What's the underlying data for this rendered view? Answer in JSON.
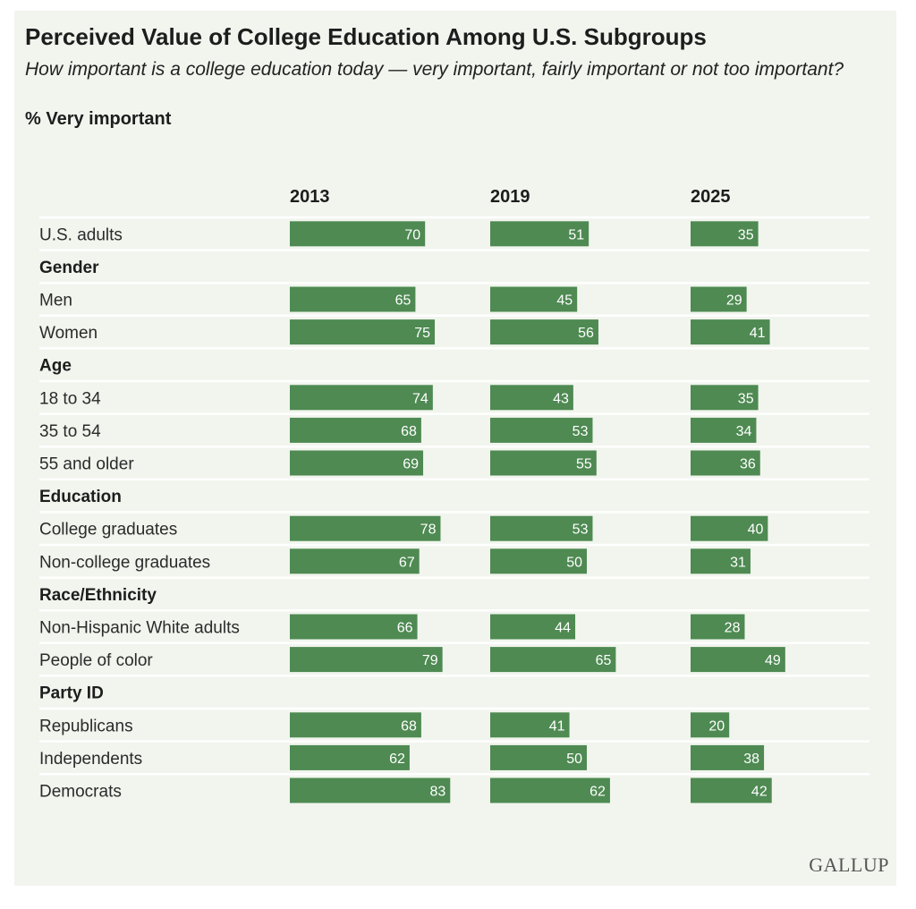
{
  "header": {
    "title": "Perceived Value of College Education Among U.S. Subgroups",
    "subtitle": "How important is a college education today — very important, fairly important or not too important?",
    "measure": "% Very important"
  },
  "source": {
    "logo_text": "GALLUP"
  },
  "colors": {
    "bar": "#4e8a52",
    "bar_text": "#ffffff",
    "divider": "#ffffff",
    "background": "#f1f5ee",
    "text": "#222222"
  },
  "chart_data": {
    "type": "bar",
    "orientation": "horizontal",
    "title": "Perceived Value of College Education Among U.S. Subgroups",
    "ylabel": "% Very important",
    "xlim": [
      0,
      100
    ],
    "series_names": [
      "2013",
      "2019",
      "2025"
    ],
    "rows": [
      {
        "label": "U.S. adults",
        "kind": "item",
        "values": [
          70,
          51,
          35
        ]
      },
      {
        "label": "Gender",
        "kind": "group"
      },
      {
        "label": "Men",
        "kind": "item",
        "values": [
          65,
          45,
          29
        ]
      },
      {
        "label": "Women",
        "kind": "item",
        "values": [
          75,
          56,
          41
        ]
      },
      {
        "label": "Age",
        "kind": "group"
      },
      {
        "label": "18 to 34",
        "kind": "item",
        "values": [
          74,
          43,
          35
        ]
      },
      {
        "label": "35 to 54",
        "kind": "item",
        "values": [
          68,
          53,
          34
        ]
      },
      {
        "label": "55 and older",
        "kind": "item",
        "values": [
          69,
          55,
          36
        ]
      },
      {
        "label": "Education",
        "kind": "group"
      },
      {
        "label": "College graduates",
        "kind": "item",
        "values": [
          78,
          53,
          40
        ]
      },
      {
        "label": "Non-college graduates",
        "kind": "item",
        "values": [
          67,
          50,
          31
        ]
      },
      {
        "label": "Race/Ethnicity",
        "kind": "group"
      },
      {
        "label": "Non-Hispanic White adults",
        "kind": "item",
        "values": [
          66,
          44,
          28
        ]
      },
      {
        "label": "People of color",
        "kind": "item",
        "values": [
          79,
          65,
          49
        ]
      },
      {
        "label": "Party ID",
        "kind": "group"
      },
      {
        "label": "Republicans",
        "kind": "item",
        "values": [
          68,
          41,
          20
        ]
      },
      {
        "label": "Independents",
        "kind": "item",
        "values": [
          62,
          50,
          38
        ]
      },
      {
        "label": "Democrats",
        "kind": "item",
        "values": [
          83,
          62,
          42
        ]
      }
    ]
  }
}
